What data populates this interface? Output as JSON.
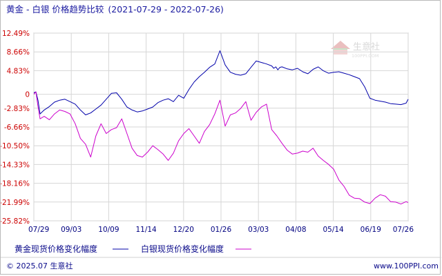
{
  "chart_data": {
    "type": "line",
    "title": "黄金 - 白银 价格趋势比较",
    "date_range": "(2021-07-29 - 2022-07-26)",
    "x_tick_labels": [
      "07/29",
      "09/03",
      "10/09",
      "11/14",
      "12/20",
      "01/26",
      "03/03",
      "04/08",
      "05/14",
      "06/19",
      "07/26"
    ],
    "y_tick_labels": [
      "12.49%",
      "8.66%",
      "4.83%",
      "0",
      "-2.83%",
      "-6.66%",
      "-10.50%",
      "-14.33%",
      "-18.16%",
      "-21.99%",
      "-25.82%"
    ],
    "ylim": [
      -25.82,
      12.49
    ],
    "y_ticks": [
      12.49,
      8.66,
      4.83,
      0.0,
      -2.83,
      -6.66,
      -10.5,
      -14.33,
      -18.16,
      -21.99,
      -25.82
    ],
    "grid": true,
    "legend_position": "bottom-left",
    "series": [
      {
        "name": "黄金现货价格变化幅度",
        "color": "#0000aa",
        "x": [
          0,
          2,
          4,
          6,
          10,
          15,
          20,
          25,
          30,
          35,
          40,
          45,
          50,
          55,
          60,
          65,
          70,
          75,
          80,
          85,
          90,
          95,
          100,
          105,
          110,
          115,
          120,
          125,
          130,
          135,
          140,
          145,
          150,
          155,
          160,
          165,
          170,
          175,
          180,
          185,
          190,
          195,
          200,
          205,
          210,
          215,
          220,
          225,
          230,
          232,
          234,
          236,
          238,
          240,
          245,
          250,
          255,
          260,
          265,
          270,
          275,
          280,
          285,
          290,
          295,
          300,
          305,
          310,
          315,
          320,
          325,
          330,
          335,
          340,
          345,
          350,
          355,
          360,
          362
        ],
        "y": [
          0.3,
          0.5,
          -1.2,
          -4.0,
          -3.2,
          -2.5,
          -1.6,
          -1.2,
          -1.0,
          -1.5,
          -2.0,
          -3.2,
          -4.2,
          -3.8,
          -3.0,
          -2.2,
          -1.0,
          0.2,
          0.3,
          -1.0,
          -2.6,
          -3.2,
          -3.6,
          -3.4,
          -3.0,
          -2.6,
          -1.7,
          -1.2,
          -0.9,
          -1.5,
          -0.2,
          -0.8,
          1.0,
          2.5,
          3.6,
          4.5,
          5.5,
          6.2,
          8.9,
          6.0,
          4.5,
          4.1,
          3.9,
          4.2,
          5.5,
          6.8,
          6.5,
          6.2,
          5.8,
          5.3,
          5.6,
          5.0,
          5.5,
          5.6,
          5.2,
          5.0,
          5.3,
          4.6,
          4.2,
          5.1,
          5.6,
          4.8,
          4.3,
          4.5,
          4.6,
          4.3,
          4.0,
          3.6,
          3.2,
          1.5,
          -0.8,
          -1.2,
          -1.4,
          -1.6,
          -1.9,
          -2.0,
          -2.1,
          -1.8,
          -1.0
        ]
      },
      {
        "name": "白银现货价格变化幅度",
        "color": "#cc00cc",
        "x": [
          0,
          2,
          4,
          6,
          10,
          15,
          20,
          25,
          30,
          35,
          40,
          45,
          50,
          55,
          60,
          65,
          70,
          75,
          80,
          85,
          90,
          95,
          100,
          105,
          110,
          115,
          120,
          125,
          130,
          135,
          140,
          145,
          150,
          155,
          160,
          165,
          170,
          175,
          180,
          185,
          190,
          195,
          200,
          205,
          210,
          215,
          220,
          225,
          230,
          235,
          240,
          245,
          250,
          255,
          260,
          265,
          270,
          275,
          280,
          285,
          290,
          295,
          300,
          305,
          310,
          315,
          320,
          325,
          330,
          335,
          340,
          345,
          350,
          355,
          360,
          362
        ],
        "y": [
          0.0,
          0.5,
          -2.5,
          -5.0,
          -4.5,
          -5.2,
          -4.0,
          -3.2,
          -3.5,
          -4.0,
          -6.0,
          -9.0,
          -10.2,
          -12.8,
          -8.5,
          -6.0,
          -8.0,
          -7.2,
          -6.8,
          -5.0,
          -8.0,
          -11.0,
          -12.5,
          -12.8,
          -11.8,
          -10.5,
          -11.3,
          -12.2,
          -13.5,
          -12.0,
          -9.5,
          -8.0,
          -7.0,
          -8.5,
          -10.0,
          -7.6,
          -6.2,
          -4.0,
          -1.2,
          -6.5,
          -4.2,
          -3.8,
          -2.9,
          -1.5,
          -5.3,
          -3.7,
          -2.6,
          -2.0,
          -7.2,
          -8.5,
          -10.0,
          -11.4,
          -12.2,
          -12.0,
          -11.6,
          -11.8,
          -11.0,
          -12.6,
          -13.5,
          -14.3,
          -15.3,
          -17.5,
          -18.8,
          -20.6,
          -21.2,
          -21.3,
          -22.0,
          -22.3,
          -21.2,
          -20.5,
          -20.8,
          -21.9,
          -22.0,
          -22.4,
          -21.9,
          -22.1
        ]
      }
    ]
  },
  "legend": {
    "gold_label": "黄金现货价格变化幅度",
    "silver_label": "白银现货价格变化幅度"
  },
  "footer": {
    "copyright": "© 2025.07 生意社",
    "url": "www.100PPI.com"
  },
  "watermark": {
    "name": "生意社",
    "url": "100PPI.COM"
  }
}
